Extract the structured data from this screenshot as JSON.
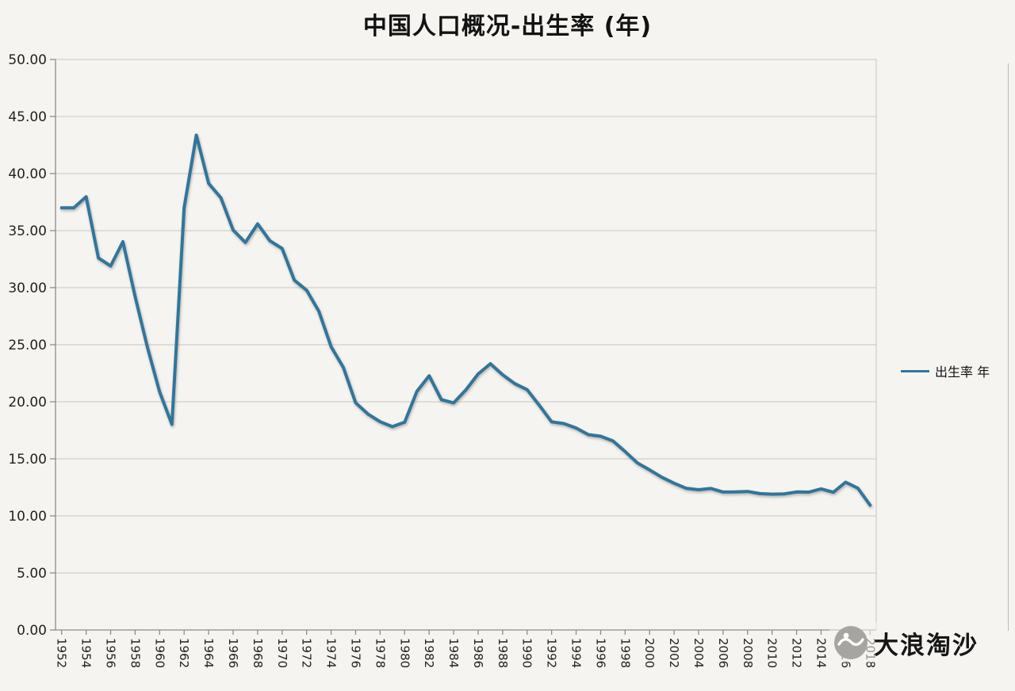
{
  "title": "中国人口概况-出生率 (年)",
  "legend": {
    "label": "出生率 年"
  },
  "watermark": {
    "text": "大浪淘沙",
    "logo": "wave-circle-logo"
  },
  "colors": {
    "line": "#31759b",
    "grid": "#c9c5bf",
    "axis": "#8f8c87",
    "background": "#f6f4f0",
    "text": "#1a1a1a"
  },
  "chart_data": {
    "type": "line",
    "title": "中国人口概况-出生率 (年)",
    "xlabel": "",
    "ylabel": "",
    "ylim": [
      0,
      50
    ],
    "ytick_step": 5,
    "ytick_format": "two-decimals",
    "xtick_interval": 2,
    "grid": "horizontal",
    "legend_position": "right",
    "x": [
      1952,
      1953,
      1954,
      1955,
      1956,
      1957,
      1958,
      1959,
      1960,
      1961,
      1962,
      1963,
      1964,
      1965,
      1966,
      1967,
      1968,
      1969,
      1970,
      1971,
      1972,
      1973,
      1974,
      1975,
      1976,
      1977,
      1978,
      1979,
      1980,
      1981,
      1982,
      1983,
      1984,
      1985,
      1986,
      1987,
      1988,
      1989,
      1990,
      1991,
      1992,
      1993,
      1994,
      1995,
      1996,
      1997,
      1998,
      1999,
      2000,
      2001,
      2002,
      2003,
      2004,
      2005,
      2006,
      2007,
      2008,
      2009,
      2010,
      2011,
      2012,
      2013,
      2014,
      2015,
      2016,
      2017,
      2018
    ],
    "series": [
      {
        "name": "出生率 年",
        "color": "#31759b",
        "values": [
          37.0,
          37.0,
          37.97,
          32.6,
          31.9,
          34.03,
          29.22,
          24.78,
          20.86,
          18.02,
          37.01,
          43.37,
          39.14,
          37.88,
          35.05,
          33.96,
          35.59,
          34.11,
          33.43,
          30.65,
          29.77,
          27.93,
          24.82,
          23.01,
          19.91,
          18.93,
          18.25,
          17.82,
          18.21,
          20.91,
          22.28,
          20.19,
          19.9,
          21.04,
          22.43,
          23.33,
          22.37,
          21.58,
          21.06,
          19.68,
          18.24,
          18.09,
          17.7,
          17.12,
          16.98,
          16.57,
          15.64,
          14.64,
          14.03,
          13.38,
          12.86,
          12.41,
          12.29,
          12.4,
          12.09,
          12.1,
          12.14,
          11.95,
          11.9,
          11.93,
          12.1,
          12.08,
          12.37,
          12.07,
          12.95,
          12.43,
          10.94
        ]
      }
    ]
  }
}
